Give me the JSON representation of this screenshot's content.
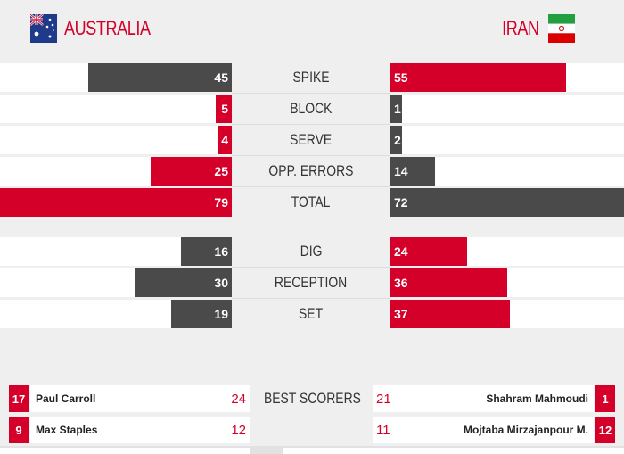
{
  "teams": {
    "home": {
      "name": "AUSTRALIA",
      "flag": "australia-flag-icon"
    },
    "away": {
      "name": "IRAN",
      "flag": "iran-flag-icon"
    }
  },
  "colors": {
    "accent": "#d4002a",
    "dark": "#4a4a4a",
    "track": "#ffffff"
  },
  "stats_group1": [
    {
      "label": "SPIKE",
      "home": "45",
      "away": "55",
      "home_fill": 0.62,
      "away_fill": 0.75,
      "home_color": "grey",
      "away_color": "red"
    },
    {
      "label": "BLOCK",
      "home": "5",
      "away": "1",
      "home_fill": 0.07,
      "away_fill": 0.05,
      "home_color": "red",
      "away_color": "grey"
    },
    {
      "label": "SERVE",
      "home": "4",
      "away": "2",
      "home_fill": 0.06,
      "away_fill": 0.05,
      "home_color": "red",
      "away_color": "grey"
    },
    {
      "label": "OPP. ERRORS",
      "home": "25",
      "away": "14",
      "home_fill": 0.35,
      "away_fill": 0.19,
      "home_color": "red",
      "away_color": "grey"
    },
    {
      "label": "TOTAL",
      "home": "79",
      "away": "72",
      "home_fill": 1.0,
      "away_fill": 1.0,
      "home_color": "red",
      "away_color": "grey"
    }
  ],
  "stats_group2": [
    {
      "label": "DIG",
      "home": "16",
      "away": "24",
      "home_fill": 0.22,
      "away_fill": 0.33,
      "home_color": "grey",
      "away_color": "red"
    },
    {
      "label": "RECEPTION",
      "home": "30",
      "away": "36",
      "home_fill": 0.42,
      "away_fill": 0.5,
      "home_color": "grey",
      "away_color": "red"
    },
    {
      "label": "SET",
      "home": "19",
      "away": "37",
      "home_fill": 0.26,
      "away_fill": 0.51,
      "home_color": "grey",
      "away_color": "red"
    }
  ],
  "best_scorers": {
    "label": "BEST SCORERS",
    "rows": [
      {
        "home_num": "17",
        "home_name": "Paul Carroll",
        "home_pts": "24",
        "away_pts": "21",
        "away_name": "Shahram Mahmoudi",
        "away_num": "1"
      },
      {
        "home_num": "9",
        "home_name": "Max Staples",
        "home_pts": "12",
        "away_pts": "11",
        "away_name": "Mojtaba Mirzajanpour M.",
        "away_num": "12"
      }
    ]
  }
}
